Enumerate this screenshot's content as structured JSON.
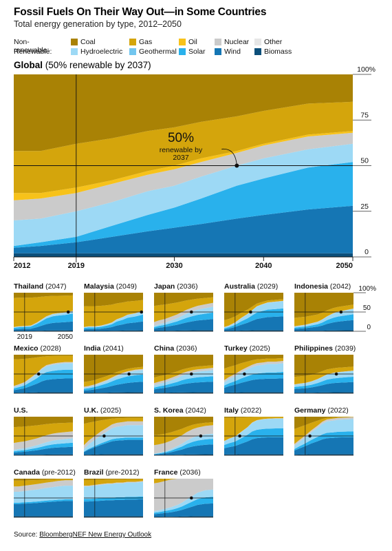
{
  "title": "Fossil Fuels On Their Way Out—in Some Countries",
  "subtitle": "Total energy generation by type, 2012–2050",
  "legend": {
    "nonrenewable_label": "Non-renewable:",
    "renewable_label": "Renewable:",
    "nonrenewable": [
      {
        "name": "Coal",
        "color": "#a98205"
      },
      {
        "name": "Gas",
        "color": "#d4a50c"
      },
      {
        "name": "Oil",
        "color": "#f7c21a"
      },
      {
        "name": "Nuclear",
        "color": "#cbcbcb"
      },
      {
        "name": "Other",
        "color": "#e6e6e6"
      }
    ],
    "renewable": [
      {
        "name": "Hydroelectric",
        "color": "#9dd9f5"
      },
      {
        "name": "Geothermal",
        "color": "#72c6ef"
      },
      {
        "name": "Solar",
        "color": "#29b1ec"
      },
      {
        "name": "Wind",
        "color": "#1576b4"
      },
      {
        "name": "Biomass",
        "color": "#0c4f7a"
      }
    ]
  },
  "main_chart": {
    "title_bold": "Global",
    "title_rest": " (50% renewable by 2037)",
    "annotation_value": "50%",
    "annotation_text": [
      "renewable by",
      "2037"
    ],
    "percent_suffix": "%"
  },
  "source": {
    "prefix": "Source: ",
    "link": "BloombergNEF New Energy Outlook"
  },
  "chart_data": [
    {
      "type": "area",
      "name": "Global",
      "x_ticks": [
        2012,
        2019,
        2030,
        2040,
        2050
      ],
      "y_ticks": [
        0,
        25,
        50,
        75,
        100
      ],
      "ylim": [
        0,
        100
      ],
      "crossover_year": 2037,
      "reference_lines": {
        "x": 2019,
        "y": 50
      },
      "x": [
        2012,
        2015,
        2019,
        2023,
        2027,
        2030,
        2033,
        2037,
        2040,
        2045,
        2050
      ],
      "series": [
        {
          "name": "Biomass",
          "values": [
            2,
            2,
            2,
            2,
            2,
            2,
            2,
            2,
            2,
            2,
            2
          ]
        },
        {
          "name": "Wind",
          "values": [
            3,
            4,
            6,
            9,
            12,
            14,
            16,
            19,
            21,
            24,
            26
          ]
        },
        {
          "name": "Solar",
          "values": [
            1,
            2,
            3,
            6,
            9,
            11,
            14,
            18,
            20,
            23,
            24
          ]
        },
        {
          "name": "Geothermal",
          "values": [
            0,
            0,
            0,
            0,
            0,
            0,
            0,
            0,
            0,
            0,
            0
          ]
        },
        {
          "name": "Hydroelectric",
          "values": [
            14,
            13,
            14,
            13,
            13,
            12,
            12,
            11,
            11,
            10,
            10
          ]
        },
        {
          "name": "Other",
          "values": [
            0,
            0,
            0,
            0,
            0,
            0,
            0,
            0,
            0,
            0,
            0
          ]
        },
        {
          "name": "Nuclear",
          "values": [
            11,
            11,
            10,
            10,
            9,
            9,
            8,
            7,
            7,
            7,
            6
          ]
        },
        {
          "name": "Oil",
          "values": [
            4,
            3,
            3,
            2,
            2,
            2,
            2,
            1,
            1,
            1,
            1
          ]
        },
        {
          "name": "Gas",
          "values": [
            23,
            23,
            24,
            23,
            22,
            21,
            20,
            19,
            18,
            17,
            16
          ]
        },
        {
          "name": "Coal",
          "values": [
            42,
            42,
            38,
            35,
            31,
            29,
            26,
            23,
            20,
            16,
            15
          ]
        }
      ]
    },
    {
      "type": "area",
      "name": "Countries",
      "year_ticks": [
        2019,
        2050
      ],
      "y_ticks": [
        0,
        50,
        100
      ],
      "series_order": [
        "Biomass",
        "Wind",
        "Solar",
        "Hydroelectric",
        "Nuclear",
        "Gas",
        "Coal"
      ],
      "countries": [
        {
          "name": "Thailand",
          "year": "(2047)",
          "renew": [
            10,
            12,
            13,
            14,
            22,
            30,
            38,
            44,
            46,
            48,
            52
          ],
          "solar_share": 0.75,
          "nuclear": 1,
          "coal_share": 0.15,
          "marker": 2047
        },
        {
          "name": "Malaysia",
          "year": "(2049)",
          "renew": [
            10,
            12,
            12,
            14,
            18,
            22,
            30,
            36,
            42,
            46,
            52
          ],
          "solar_share": 0.65,
          "nuclear": 1,
          "coal_share": 0.4,
          "marker": 2049
        },
        {
          "name": "Japan",
          "year": "(2036)",
          "renew": [
            14,
            18,
            22,
            28,
            34,
            40,
            46,
            52,
            56,
            60,
            64
          ],
          "solar_share": 0.5,
          "nuclear": 10,
          "coal_share": 0.45,
          "marker": 2036
        },
        {
          "name": "Australia",
          "year": "(2029)",
          "renew": [
            10,
            14,
            22,
            34,
            44,
            54,
            64,
            70,
            74,
            76,
            78
          ],
          "solar_share": 0.5,
          "nuclear": 1,
          "coal_share": 0.8,
          "marker": 2029
        },
        {
          "name": "Indonesia",
          "year": "(2042)",
          "renew": [
            12,
            14,
            16,
            20,
            24,
            30,
            38,
            46,
            50,
            54,
            58
          ],
          "solar_share": 0.5,
          "nuclear": 1,
          "coal_share": 0.75,
          "marker": 2042
        },
        {
          "name": "Mexico",
          "year": "(2028)",
          "renew": [
            16,
            20,
            26,
            38,
            50,
            62,
            70,
            74,
            76,
            78,
            78
          ],
          "solar_share": 0.55,
          "nuclear": 3,
          "coal_share": 0.15,
          "marker": 2028
        },
        {
          "name": "India",
          "year": "(2041)",
          "renew": [
            14,
            16,
            20,
            26,
            32,
            38,
            44,
            50,
            54,
            58,
            60
          ],
          "solar_share": 0.6,
          "nuclear": 3,
          "coal_share": 0.85,
          "marker": 2041
        },
        {
          "name": "China",
          "year": "(2036)",
          "renew": [
            20,
            24,
            28,
            34,
            40,
            46,
            50,
            54,
            56,
            58,
            60
          ],
          "solar_share": 0.45,
          "nuclear": 6,
          "coal_share": 0.8,
          "marker": 2036
        },
        {
          "name": "Turkey",
          "year": "(2025)",
          "renew": [
            28,
            36,
            44,
            54,
            62,
            68,
            72,
            74,
            76,
            76,
            78
          ],
          "solar_share": 0.4,
          "nuclear": 6,
          "coal_share": 0.55,
          "marker": 2025
        },
        {
          "name": "Philippines",
          "year": "(2039)",
          "renew": [
            22,
            24,
            26,
            30,
            36,
            42,
            48,
            52,
            54,
            56,
            58
          ],
          "solar_share": 0.45,
          "nuclear": 1,
          "coal_share": 0.75,
          "marker": 2039
        },
        {
          "name": "U.S.",
          "year": "",
          "renew": [
            14,
            16,
            18,
            22,
            26,
            30,
            34,
            38,
            40,
            42,
            44
          ],
          "solar_share": 0.45,
          "nuclear": 18,
          "coal_share": 0.4,
          "marker": null
        },
        {
          "name": "U.K.",
          "year": "(2025)",
          "renew": [
            16,
            28,
            40,
            52,
            62,
            70,
            74,
            76,
            78,
            78,
            78
          ],
          "solar_share": 0.15,
          "nuclear": 10,
          "coal_share": 0.25,
          "marker": 2025
        },
        {
          "name": "S. Korea",
          "year": "(2042)",
          "renew": [
            4,
            6,
            10,
            16,
            24,
            30,
            38,
            46,
            50,
            54,
            56
          ],
          "solar_share": 0.5,
          "nuclear": 22,
          "coal_share": 0.65,
          "marker": 2042
        },
        {
          "name": "Italy",
          "year": "(2022)",
          "renew": [
            36,
            42,
            48,
            60,
            72,
            84,
            90,
            93,
            94,
            95,
            95
          ],
          "solar_share": 0.45,
          "nuclear": 1,
          "coal_share": 0.05,
          "marker": 2022
        },
        {
          "name": "Germany",
          "year": "(2022)",
          "renew": [
            24,
            34,
            46,
            60,
            72,
            82,
            88,
            90,
            92,
            93,
            94
          ],
          "solar_share": 0.3,
          "nuclear": 5,
          "coal_share": 0.45,
          "marker": 2022
        },
        {
          "name": "Canada",
          "year": "(pre-2012)",
          "renew": [
            66,
            66,
            68,
            70,
            72,
            74,
            76,
            78,
            80,
            82,
            82
          ],
          "solar_share": 0.1,
          "nuclear": 14,
          "coal_share": 0.25,
          "marker": null
        },
        {
          "name": "Brazil",
          "year": "(pre-2012)",
          "renew": [
            80,
            80,
            82,
            84,
            86,
            86,
            88,
            88,
            90,
            90,
            92
          ],
          "solar_share": 0.15,
          "nuclear": 2,
          "coal_share": 0.2,
          "marker": null
        },
        {
          "name": "France",
          "year": "(2036)",
          "renew": [
            16,
            18,
            22,
            26,
            32,
            38,
            46,
            56,
            64,
            70,
            72
          ],
          "solar_share": 0.45,
          "nuclear": 72,
          "coal_share": 0.1,
          "marker": 2036
        }
      ]
    }
  ]
}
